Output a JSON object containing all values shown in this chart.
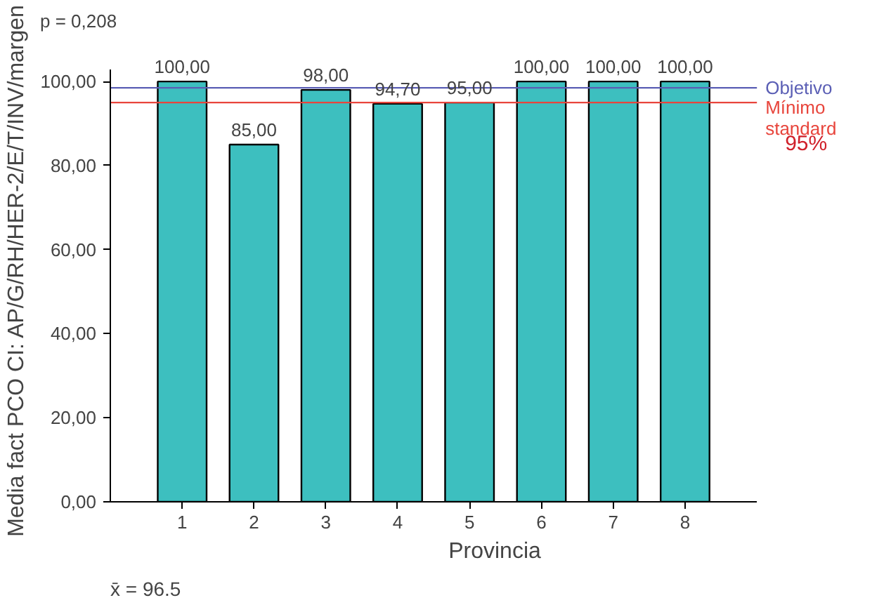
{
  "chart_data": {
    "type": "bar",
    "xlabel": "Provincia",
    "ylabel": "Media fact PCO CI: AP/G/RH/HER-2/E/T/INV/margen",
    "categories": [
      "1",
      "2",
      "3",
      "4",
      "5",
      "6",
      "7",
      "8"
    ],
    "values": [
      100,
      85,
      98,
      94.7,
      95,
      100,
      100,
      100
    ],
    "color": "#3dbfbf",
    "value_labels": [
      "100,00",
      "85,00",
      "98,00",
      "94,70",
      "95,00",
      "100,00",
      "100,00",
      "100,00"
    ],
    "ylim": [
      0,
      103
    ],
    "yticks": [
      {
        "value": 0,
        "label": "0,00"
      },
      {
        "value": 20,
        "label": "20,00"
      },
      {
        "value": 40,
        "label": "40,00"
      },
      {
        "value": 60,
        "label": "60,00"
      },
      {
        "value": 80,
        "label": "80,00"
      },
      {
        "value": 100,
        "label": "100,00"
      }
    ],
    "ref_lines": [
      {
        "axis": "y",
        "value": 98.5,
        "label": "Objetivo",
        "color": "#5b5fb5"
      },
      {
        "axis": "y",
        "value": 95,
        "label": "Mínimo standard",
        "color": "#e8453c"
      }
    ],
    "annotations": [
      "p = 0,208",
      "x̄ = 96.5",
      "95%"
    ],
    "grid": false
  }
}
